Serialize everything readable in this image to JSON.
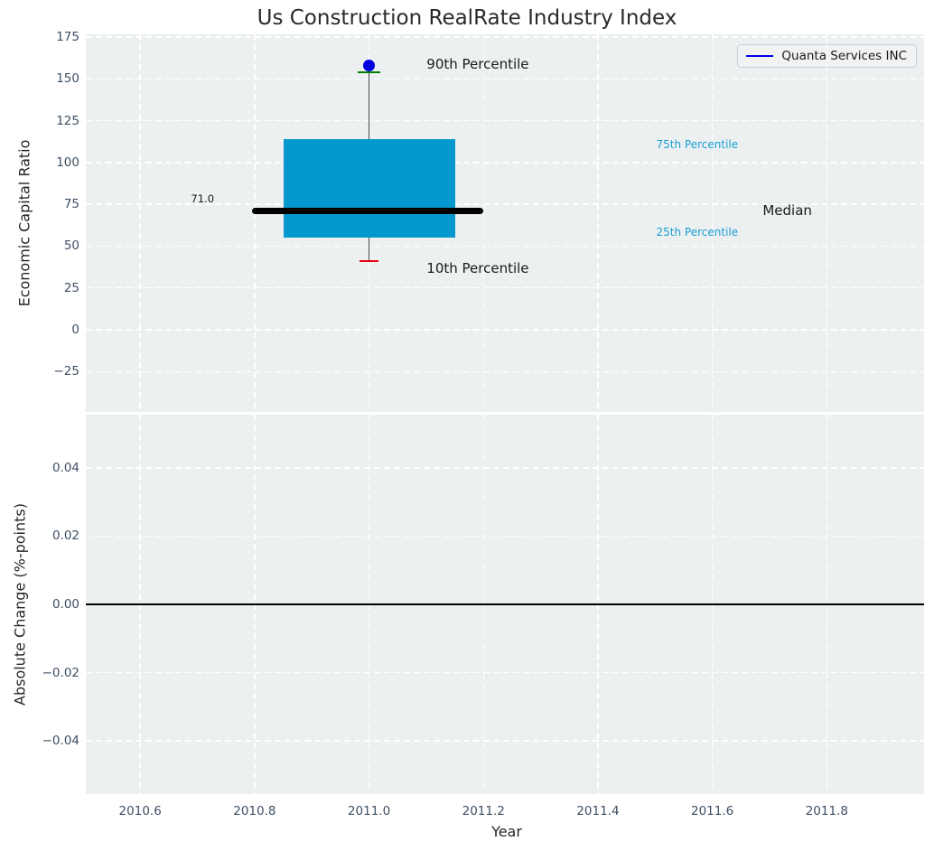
{
  "title": "Us Construction RealRate Industry Index",
  "legend": {
    "label": "Quanta Services INC"
  },
  "colors": {
    "figure_bg": "#ffffff",
    "plot_bg": "#ecf0f1",
    "grid": "#ffffff",
    "tick": "#3d4f63",
    "title": "#2a2a2a",
    "box_fill": "#0598ce",
    "median_line": "#000000",
    "whisker": "#4a4a4a",
    "cap_90": "#008000",
    "cap_10": "#e8000b",
    "company_dot": "#0000e1",
    "percentile_label": "#1b9ed3",
    "zero_line": "#000000"
  },
  "chart_data": [
    {
      "type": "boxplot",
      "title": "Us Construction RealRate Industry Index",
      "ylabel": "Economic Capital Ratio",
      "xlim": [
        2010.505,
        2011.97
      ],
      "ylim": [
        -49.2,
        176.7
      ],
      "yticks": [
        175,
        150,
        125,
        100,
        75,
        50,
        25,
        0,
        -25
      ],
      "xticks": [
        2010.6,
        2010.8,
        2011.0,
        2011.2,
        2011.4,
        2011.6,
        2011.8
      ],
      "grid": "dashed-white",
      "legend_position": "upper right",
      "box": {
        "x_center": 2011.0,
        "x_left": 2010.85,
        "x_right": 2011.15,
        "median_x_left": 2010.795,
        "median_x_right": 2011.2,
        "p10": 41,
        "p25": 55,
        "median": 71.0,
        "p75": 114,
        "p90": 154,
        "company_point": 158
      },
      "annotations": [
        {
          "id": "p90-annotation",
          "text": "90th Percentile",
          "x": 2011.19,
          "y": 158.8,
          "anchor": "center",
          "style": "annotation"
        },
        {
          "id": "p10-annotation",
          "text": "10th Percentile",
          "x": 2011.19,
          "y": 36.7,
          "anchor": "center",
          "style": "annotation"
        },
        {
          "id": "median-value-label",
          "text": "71.0",
          "x": 2010.709,
          "y": 78.3,
          "anchor": "center",
          "style": "small"
        },
        {
          "id": "p75-label",
          "text": "75th Percentile",
          "x": 2011.502,
          "y": 110.8,
          "anchor": "left",
          "style": "percentile"
        },
        {
          "id": "p25-label",
          "text": "25th Percentile",
          "x": 2011.502,
          "y": 58.3,
          "anchor": "left",
          "style": "percentile"
        },
        {
          "id": "median-label",
          "text": "Median",
          "x": 2011.688,
          "y": 71.3,
          "anchor": "left",
          "style": "annotation"
        }
      ]
    },
    {
      "type": "line",
      "ylabel": "Absolute Change (%-points)",
      "xlabel": "Year",
      "xlim": [
        2010.505,
        2011.97
      ],
      "ylim": [
        -0.0556,
        0.0556
      ],
      "yticks": [
        0.04,
        0.02,
        0,
        -0.02,
        -0.04
      ],
      "xticks": [
        2010.6,
        2010.8,
        2011.0,
        2011.2,
        2011.4,
        2011.6,
        2011.8
      ],
      "zero_line": 0,
      "series": []
    }
  ]
}
